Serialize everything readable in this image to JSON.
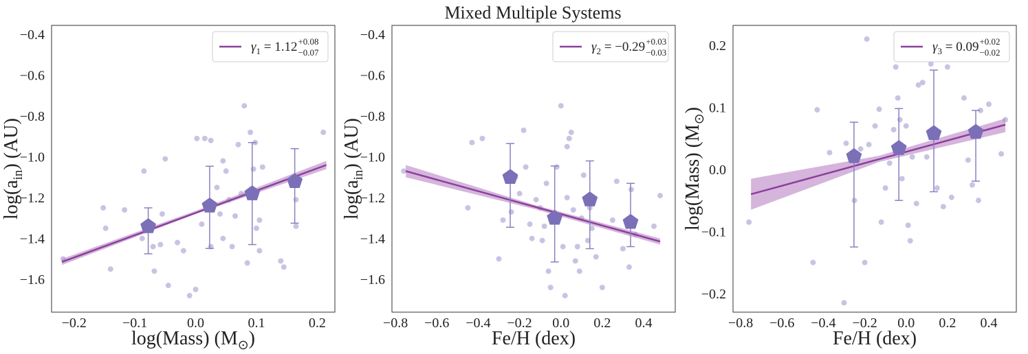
{
  "title": "Mixed Multiple Systems",
  "chart_data": [
    {
      "type": "scatter",
      "xlabel": {
        "text": "log(Mass) (M",
        "sub": "⊙",
        "after": ")"
      },
      "ylabel": {
        "text": "log(a",
        "sub": "in",
        "after": ") (AU)"
      },
      "xlim": [
        -0.237,
        0.229
      ],
      "ylim": [
        -1.761,
        -0.356
      ],
      "xticks": [
        {
          "value": -0.2,
          "label": "−0.2"
        },
        {
          "value": -0.1,
          "label": "−0.1"
        },
        {
          "value": 0,
          "label": "0.0"
        },
        0.1,
        0.2
      ],
      "yticks": [
        {
          "value": -1.6,
          "label": "−1.6"
        },
        {
          "value": -1.4,
          "label": "−1.4"
        },
        {
          "value": -1.2,
          "label": "−1.2"
        },
        {
          "value": -1.0,
          "label": "−1.0"
        },
        {
          "value": -0.8,
          "label": "−0.8"
        },
        {
          "value": -0.6,
          "label": "−0.6"
        },
        {
          "value": -0.4,
          "label": "−0.4"
        }
      ],
      "legend": "upper right",
      "points": {
        "color": "#c9c3e3",
        "x": [
          -0.218,
          -0.152,
          -0.148,
          -0.14,
          -0.117,
          -0.085,
          -0.088,
          -0.07,
          -0.068,
          -0.058,
          -0.055,
          -0.05,
          -0.045,
          -0.03,
          -0.02,
          -0.01,
          0.0,
          0.002,
          0.01,
          0.015,
          0.02,
          0.025,
          0.025,
          0.035,
          0.04,
          0.045,
          0.045,
          0.05,
          0.055,
          0.06,
          0.065,
          0.07,
          0.075,
          0.08,
          0.085,
          0.09,
          0.095,
          0.098,
          0.1,
          0.105,
          0.105,
          0.11,
          0.14,
          0.145,
          0.165,
          0.165,
          0.21
        ],
        "y": [
          -1.5,
          -1.25,
          -1.35,
          -1.55,
          -1.26,
          -1.07,
          -1.4,
          -1.44,
          -1.56,
          -1.43,
          -1.28,
          -1.01,
          -1.63,
          -1.42,
          -1.46,
          -1.68,
          -1.65,
          -0.91,
          -1.33,
          -0.91,
          -1.25,
          -0.92,
          -1.44,
          -1.15,
          -1.28,
          -1.02,
          -1.4,
          -1.07,
          -1.21,
          -1.44,
          -1.29,
          -0.94,
          -1.18,
          -0.75,
          -1.52,
          -0.88,
          -1.06,
          -0.93,
          -1.35,
          -1.31,
          -1.46,
          -1.05,
          -1.51,
          -1.54,
          -1.21,
          -1.34,
          -0.88
        ]
      },
      "binned": {
        "color": "#7b6fb8",
        "err_color": "#8a80c0",
        "x": [
          -0.078,
          0.023,
          0.093,
          0.163
        ],
        "y": [
          -1.341,
          -1.24,
          -1.18,
          -1.12
        ],
        "err_low": [
          -1.475,
          -1.449,
          -1.43,
          -1.325
        ],
        "err_high": [
          -1.25,
          -1.046,
          -0.93,
          -0.96
        ]
      },
      "fit": {
        "color": "#8b3f9b",
        "x": [
          -0.22,
          0.215
        ],
        "y": [
          -1.515,
          -1.04
        ],
        "name": {
          "symbol": "γ",
          "sub": "1",
          "value": " = 1.12",
          "plus": "+0.08",
          "minus": "−0.07"
        }
      },
      "band": {
        "color": "#b983c4",
        "x": [
          -0.22,
          0.0,
          0.215
        ],
        "lower": [
          -1.53,
          -1.28,
          -1.06
        ],
        "upper": [
          -1.5,
          -1.265,
          -1.02
        ]
      }
    },
    {
      "type": "scatter",
      "xlabel": "Fe/H (dex)",
      "ylabel": {
        "text": "log(a",
        "sub": "in",
        "after": ") (AU)"
      },
      "xlim": [
        -0.817,
        0.553
      ],
      "ylim": [
        -1.761,
        -0.356
      ],
      "xticks": [
        {
          "value": -0.8,
          "label": "−0.8"
        },
        {
          "value": -0.6,
          "label": "−0.6"
        },
        {
          "value": -0.4,
          "label": "−0.4"
        },
        {
          "value": -0.2,
          "label": "−0.2"
        },
        {
          "value": 0,
          "label": "0.0"
        },
        0.2,
        0.4
      ],
      "yticks": [
        {
          "value": -1.6,
          "label": "−1.6"
        },
        {
          "value": -1.4,
          "label": "−1.4"
        },
        {
          "value": -1.2,
          "label": "−1.2"
        },
        {
          "value": -1.0,
          "label": "−1.0"
        },
        {
          "value": -0.8,
          "label": "−0.8"
        },
        {
          "value": -0.6,
          "label": "−0.6"
        },
        {
          "value": -0.4,
          "label": "−0.4"
        }
      ],
      "legend": "upper right",
      "points": {
        "color": "#c9c3e3",
        "x": [
          -0.76,
          -0.45,
          -0.43,
          -0.38,
          -0.3,
          -0.28,
          -0.24,
          -0.22,
          -0.2,
          -0.18,
          -0.17,
          -0.15,
          -0.14,
          -0.12,
          -0.1,
          -0.09,
          -0.08,
          -0.07,
          -0.06,
          -0.05,
          -0.03,
          -0.02,
          0.0,
          0.01,
          0.02,
          0.03,
          0.03,
          0.04,
          0.05,
          0.06,
          0.07,
          0.08,
          0.09,
          0.1,
          0.11,
          0.13,
          0.14,
          0.15,
          0.17,
          0.2,
          0.25,
          0.27,
          0.3,
          0.33,
          0.34,
          0.36,
          0.45,
          0.48
        ],
        "y": [
          -1.07,
          -1.25,
          -0.93,
          -0.91,
          -1.5,
          -1.31,
          -1.27,
          -1.1,
          -1.18,
          -0.87,
          -1.05,
          -1.33,
          -1.4,
          -1.21,
          -1.25,
          -1.41,
          -1.34,
          -1.13,
          -1.56,
          -1.64,
          -1.31,
          -1.05,
          -0.75,
          -1.44,
          -1.68,
          -1.2,
          -0.95,
          -0.91,
          -0.88,
          -1.26,
          -1.51,
          -1.44,
          -1.56,
          -1.3,
          -1.09,
          -1.41,
          -1.25,
          -1.35,
          -1.49,
          -1.64,
          -1.31,
          -1.12,
          -1.45,
          -1.54,
          -1.16,
          -1.38,
          -1.34,
          -1.19
        ]
      },
      "binned": {
        "color": "#7b6fb8",
        "err_color": "#8a80c0",
        "x": [
          -0.245,
          -0.03,
          0.14,
          0.337
        ],
        "y": [
          -1.1,
          -1.3,
          -1.21,
          -1.32
        ],
        "err_low": [
          -1.345,
          -1.515,
          -1.45,
          -1.44
        ],
        "err_high": [
          -0.935,
          -1.045,
          -1.02,
          -1.13
        ]
      },
      "fit": {
        "color": "#8b3f9b",
        "x": [
          -0.75,
          0.48
        ],
        "y": [
          -1.07,
          -1.415
        ],
        "name": {
          "symbol": "γ",
          "sub": "2",
          "value": " = −0.29",
          "plus": "+0.03",
          "minus": "−0.03"
        }
      },
      "band": {
        "color": "#b983c4",
        "x": [
          -0.75,
          -0.13,
          0.48
        ],
        "lower": [
          -1.1,
          -1.255,
          -1.43
        ],
        "upper": [
          -1.04,
          -1.235,
          -1.4
        ]
      }
    },
    {
      "type": "scatter",
      "xlabel": "Fe/H (dex)",
      "ylabel": {
        "text": "log(Mass) (M",
        "sub": "⊙",
        "after": ")"
      },
      "xlim": [
        -0.837,
        0.533
      ],
      "ylim": [
        -0.23,
        0.232
      ],
      "xticks": [
        {
          "value": -0.8,
          "label": "−0.8"
        },
        {
          "value": -0.6,
          "label": "−0.6"
        },
        {
          "value": -0.4,
          "label": "−0.4"
        },
        {
          "value": -0.2,
          "label": "−0.2"
        },
        {
          "value": 0,
          "label": "0.0"
        },
        0.2,
        0.4
      ],
      "yticks": [
        {
          "value": -0.2,
          "label": "−0.2"
        },
        {
          "value": -0.1,
          "label": "−0.1"
        },
        {
          "value": 0,
          "label": "0.0"
        },
        0.1,
        0.2
      ],
      "legend": "upper right",
      "points": {
        "color": "#c9c3e3",
        "x": [
          -0.76,
          -0.45,
          -0.43,
          -0.37,
          -0.3,
          -0.29,
          -0.25,
          -0.22,
          -0.2,
          -0.19,
          -0.18,
          -0.15,
          -0.13,
          -0.12,
          -0.1,
          -0.08,
          -0.06,
          -0.05,
          -0.04,
          -0.03,
          -0.02,
          0.0,
          0.01,
          0.02,
          0.03,
          0.05,
          0.06,
          0.08,
          0.1,
          0.12,
          0.15,
          0.18,
          0.2,
          0.22,
          0.28,
          0.3,
          0.32,
          0.35,
          0.36,
          0.4,
          0.46,
          0.48
        ],
        "y": [
          -0.085,
          -0.15,
          0.096,
          0.027,
          -0.215,
          0.042,
          -0.05,
          0.033,
          -0.15,
          0.21,
          0.04,
          0.07,
          0.097,
          -0.085,
          -0.03,
          0.01,
          0.064,
          0.165,
          0.115,
          0.08,
          -0.015,
          0.07,
          -0.09,
          -0.115,
          0.02,
          -0.055,
          0.136,
          0.14,
          0.02,
          0.17,
          -0.03,
          -0.06,
          0.165,
          -0.045,
          0.115,
          0.015,
          -0.025,
          -0.05,
          0.095,
          0.105,
          0.025,
          0.08
        ]
      },
      "binned": {
        "color": "#7b6fb8",
        "err_color": "#8a80c0",
        "x": [
          -0.252,
          -0.035,
          0.134,
          0.337
        ],
        "y": [
          0.021,
          0.034,
          0.058,
          0.06
        ],
        "err_low": [
          -0.125,
          -0.05,
          -0.036,
          -0.019
        ],
        "err_high": [
          0.076,
          0.098,
          0.16,
          0.095
        ]
      },
      "fit": {
        "color": "#8b3f9b",
        "x": [
          -0.75,
          0.48
        ],
        "y": [
          -0.04,
          0.072
        ],
        "name": {
          "symbol": "γ",
          "sub": "3",
          "value": " = 0.09",
          "plus": "+0.02",
          "minus": "−0.02"
        }
      },
      "band": {
        "color": "#b983c4",
        "x": [
          -0.75,
          -0.13,
          0.48
        ],
        "lower": [
          -0.065,
          0.012,
          0.06
        ],
        "upper": [
          -0.015,
          0.022,
          0.082
        ]
      }
    }
  ]
}
